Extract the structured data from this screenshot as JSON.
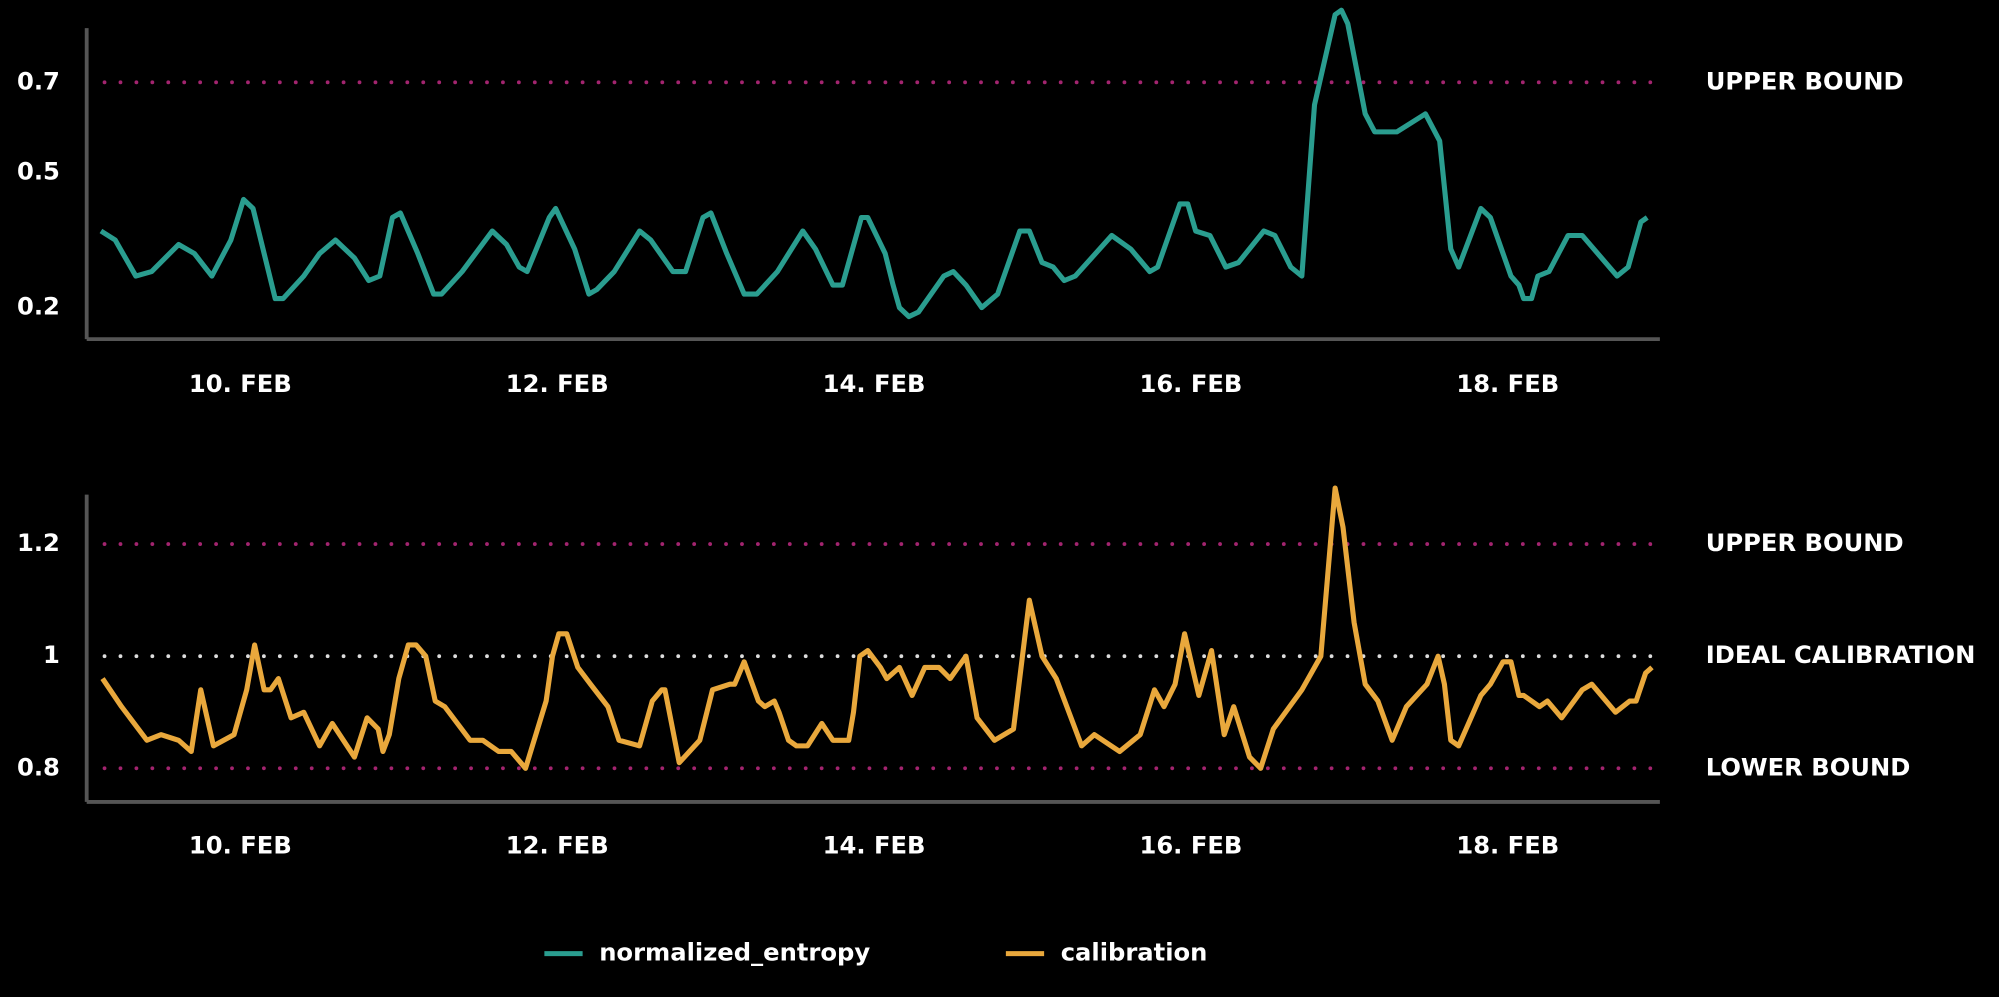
{
  "chart_data": [
    {
      "type": "line",
      "xlim": [
        9.03,
        18.96
      ],
      "ylim": [
        0.13,
        0.86
      ],
      "xticks": [
        {
          "value": 10,
          "label": "10. FEB"
        },
        {
          "value": 12,
          "label": "12. FEB"
        },
        {
          "value": 14,
          "label": "14. FEB"
        },
        {
          "value": 16,
          "label": "16. FEB"
        },
        {
          "value": 18,
          "label": "18. FEB"
        }
      ],
      "yticks": [
        0.2,
        0.5,
        0.7
      ],
      "reference_lines": [
        {
          "value": 0.7,
          "label": "UPPER BOUND",
          "color": "#a3246f"
        }
      ],
      "x": [
        9.12,
        9.21,
        9.34,
        9.44,
        9.61,
        9.71,
        9.82,
        9.94,
        10.02,
        10.08,
        10.22,
        10.27,
        10.4,
        10.5,
        10.6,
        10.72,
        10.81,
        10.88,
        10.96,
        11.01,
        11.12,
        11.22,
        11.27,
        11.4,
        11.59,
        11.68,
        11.76,
        11.81,
        11.95,
        11.99,
        12.11,
        12.2,
        12.25,
        12.36,
        12.52,
        12.59,
        12.73,
        12.81,
        12.92,
        12.97,
        13.07,
        13.18,
        13.26,
        13.39,
        13.55,
        13.63,
        13.74,
        13.8,
        13.92,
        13.96,
        14.07,
        14.12,
        14.16,
        14.22,
        14.28,
        14.44,
        14.5,
        14.58,
        14.68,
        14.78,
        14.92,
        14.98,
        15.06,
        15.13,
        15.2,
        15.27,
        15.5,
        15.62,
        15.74,
        15.79,
        15.93,
        15.98,
        16.03,
        16.12,
        16.22,
        16.3,
        16.46,
        16.53,
        16.63,
        16.7,
        16.78,
        16.91,
        16.95,
        16.99,
        17.1,
        17.16,
        17.23,
        17.3,
        17.48,
        17.57,
        17.64,
        17.69,
        17.83,
        17.89,
        18.02,
        18.07,
        18.1,
        18.15,
        18.19,
        18.26,
        18.38,
        18.47,
        18.69,
        18.76,
        18.84,
        18.88
      ],
      "series": [
        {
          "name": "normalized_entropy",
          "color": "#2a9d8f",
          "values": [
            0.37,
            0.35,
            0.27,
            0.28,
            0.34,
            0.32,
            0.27,
            0.35,
            0.44,
            0.42,
            0.22,
            0.22,
            0.27,
            0.32,
            0.35,
            0.31,
            0.26,
            0.27,
            0.4,
            0.41,
            0.32,
            0.23,
            0.23,
            0.28,
            0.37,
            0.34,
            0.29,
            0.28,
            0.4,
            0.42,
            0.33,
            0.23,
            0.24,
            0.28,
            0.37,
            0.35,
            0.28,
            0.28,
            0.4,
            0.41,
            0.32,
            0.23,
            0.23,
            0.28,
            0.37,
            0.33,
            0.25,
            0.25,
            0.4,
            0.4,
            0.32,
            0.25,
            0.2,
            0.18,
            0.19,
            0.27,
            0.28,
            0.25,
            0.2,
            0.23,
            0.37,
            0.37,
            0.3,
            0.29,
            0.26,
            0.27,
            0.36,
            0.33,
            0.28,
            0.29,
            0.43,
            0.43,
            0.37,
            0.36,
            0.29,
            0.3,
            0.37,
            0.36,
            0.29,
            0.27,
            0.65,
            0.85,
            0.86,
            0.83,
            0.63,
            0.59,
            0.59,
            0.59,
            0.63,
            0.57,
            0.33,
            0.29,
            0.42,
            0.4,
            0.27,
            0.25,
            0.22,
            0.22,
            0.27,
            0.28,
            0.36,
            0.36,
            0.27,
            0.29,
            0.39,
            0.4
          ]
        }
      ]
    },
    {
      "type": "line",
      "xlim": [
        9.03,
        18.96
      ],
      "ylim": [
        0.74,
        1.32
      ],
      "xticks": [
        {
          "value": 10,
          "label": "10. FEB"
        },
        {
          "value": 12,
          "label": "12. FEB"
        },
        {
          "value": 14,
          "label": "14. FEB"
        },
        {
          "value": 16,
          "label": "16. FEB"
        },
        {
          "value": 18,
          "label": "18. FEB"
        }
      ],
      "yticks": [
        0.8,
        1,
        1.2
      ],
      "reference_lines": [
        {
          "value": 1.2,
          "label": "UPPER BOUND",
          "color": "#a3246f"
        },
        {
          "value": 1,
          "label": "IDEAL CALIBRATION",
          "color": "#dddddd"
        },
        {
          "value": 0.8,
          "label": "LOWER BOUND",
          "color": "#a3246f"
        }
      ],
      "x": [
        9.13,
        9.25,
        9.41,
        9.5,
        9.61,
        9.69,
        9.75,
        9.83,
        9.96,
        10.04,
        10.09,
        10.15,
        10.19,
        10.24,
        10.32,
        10.4,
        10.5,
        10.58,
        10.72,
        10.8,
        10.87,
        10.9,
        10.94,
        11.0,
        11.06,
        11.11,
        11.17,
        11.23,
        11.29,
        11.45,
        11.53,
        11.63,
        11.71,
        11.8,
        11.93,
        11.97,
        12.01,
        12.06,
        12.13,
        12.21,
        12.32,
        12.39,
        12.52,
        12.6,
        12.66,
        12.68,
        12.77,
        12.9,
        12.98,
        13.09,
        13.12,
        13.18,
        13.27,
        13.31,
        13.37,
        13.4,
        13.46,
        13.51,
        13.58,
        13.67,
        13.74,
        13.84,
        13.87,
        13.91,
        13.96,
        14.04,
        14.08,
        14.16,
        14.24,
        14.32,
        14.41,
        14.48,
        14.58,
        14.65,
        14.76,
        14.88,
        14.98,
        15.06,
        15.15,
        15.31,
        15.39,
        15.55,
        15.68,
        15.77,
        15.83,
        15.9,
        15.96,
        16.05,
        16.13,
        16.21,
        16.27,
        16.37,
        16.44,
        16.52,
        16.7,
        16.82,
        16.91,
        16.96,
        17.03,
        17.1,
        17.18,
        17.27,
        17.36,
        17.49,
        17.56,
        17.6,
        17.64,
        17.69,
        17.83,
        17.89,
        17.97,
        18.02,
        18.07,
        18.1,
        18.2,
        18.25,
        18.34,
        18.47,
        18.53,
        18.68,
        18.77,
        18.81,
        18.87,
        18.91
      ],
      "series": [
        {
          "name": "calibration",
          "color": "#e9a83c",
          "values": [
            0.96,
            0.91,
            0.85,
            0.86,
            0.85,
            0.83,
            0.94,
            0.84,
            0.86,
            0.94,
            1.02,
            0.94,
            0.94,
            0.96,
            0.89,
            0.9,
            0.84,
            0.88,
            0.82,
            0.89,
            0.87,
            0.83,
            0.86,
            0.96,
            1.02,
            1.02,
            1.0,
            0.92,
            0.91,
            0.85,
            0.85,
            0.83,
            0.83,
            0.8,
            0.92,
            1.0,
            1.04,
            1.04,
            0.98,
            0.95,
            0.91,
            0.85,
            0.84,
            0.92,
            0.94,
            0.94,
            0.81,
            0.85,
            0.94,
            0.95,
            0.95,
            0.99,
            0.92,
            0.91,
            0.92,
            0.9,
            0.85,
            0.84,
            0.84,
            0.88,
            0.85,
            0.85,
            0.9,
            1.0,
            1.01,
            0.98,
            0.96,
            0.98,
            0.93,
            0.98,
            0.98,
            0.96,
            1.0,
            0.89,
            0.85,
            0.87,
            1.1,
            1.0,
            0.96,
            0.84,
            0.86,
            0.83,
            0.86,
            0.94,
            0.91,
            0.95,
            1.04,
            0.93,
            1.01,
            0.86,
            0.91,
            0.82,
            0.8,
            0.87,
            0.94,
            1.0,
            1.3,
            1.23,
            1.06,
            0.95,
            0.92,
            0.85,
            0.91,
            0.95,
            1.0,
            0.95,
            0.85,
            0.84,
            0.93,
            0.95,
            0.99,
            0.99,
            0.93,
            0.93,
            0.91,
            0.92,
            0.89,
            0.94,
            0.95,
            0.9,
            0.92,
            0.92,
            0.97,
            0.98
          ]
        }
      ]
    }
  ]
}
